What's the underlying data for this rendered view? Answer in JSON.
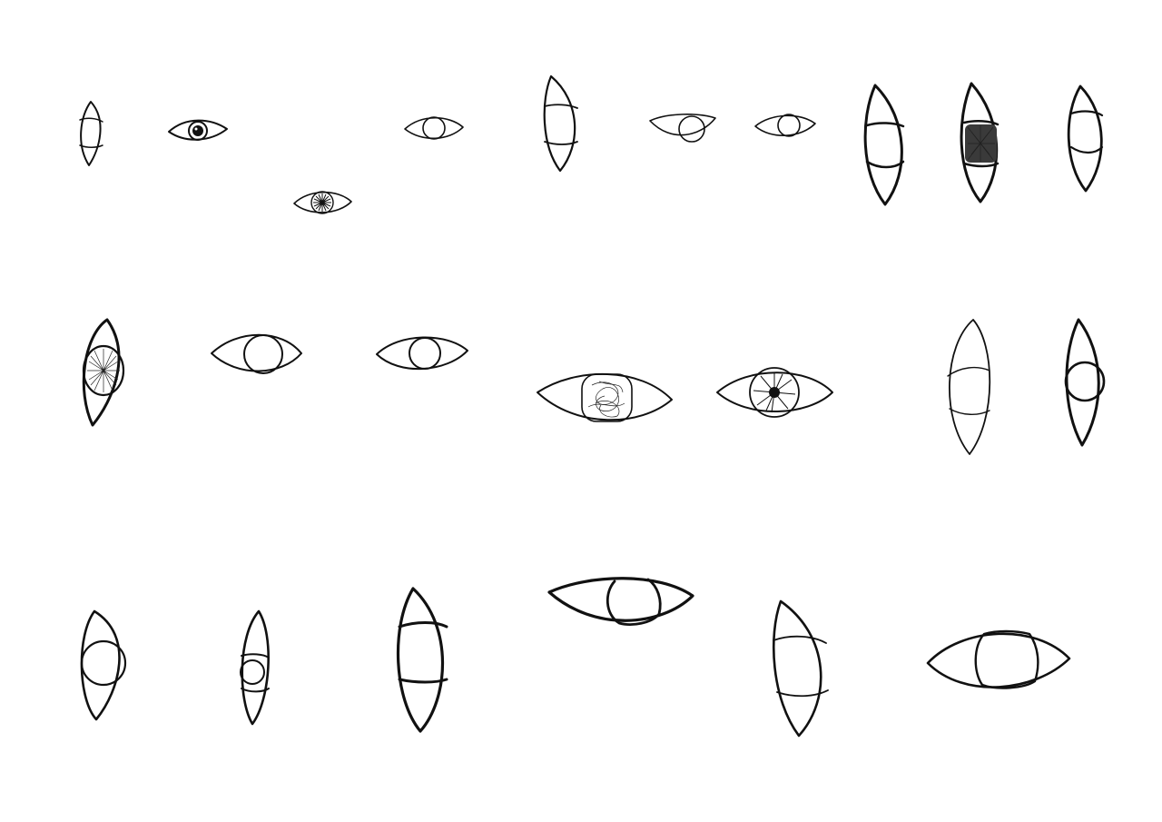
{
  "artwork": {
    "subject": "eye-sketches",
    "colors": {
      "background": "#ffffff",
      "ink": "#111111"
    }
  }
}
